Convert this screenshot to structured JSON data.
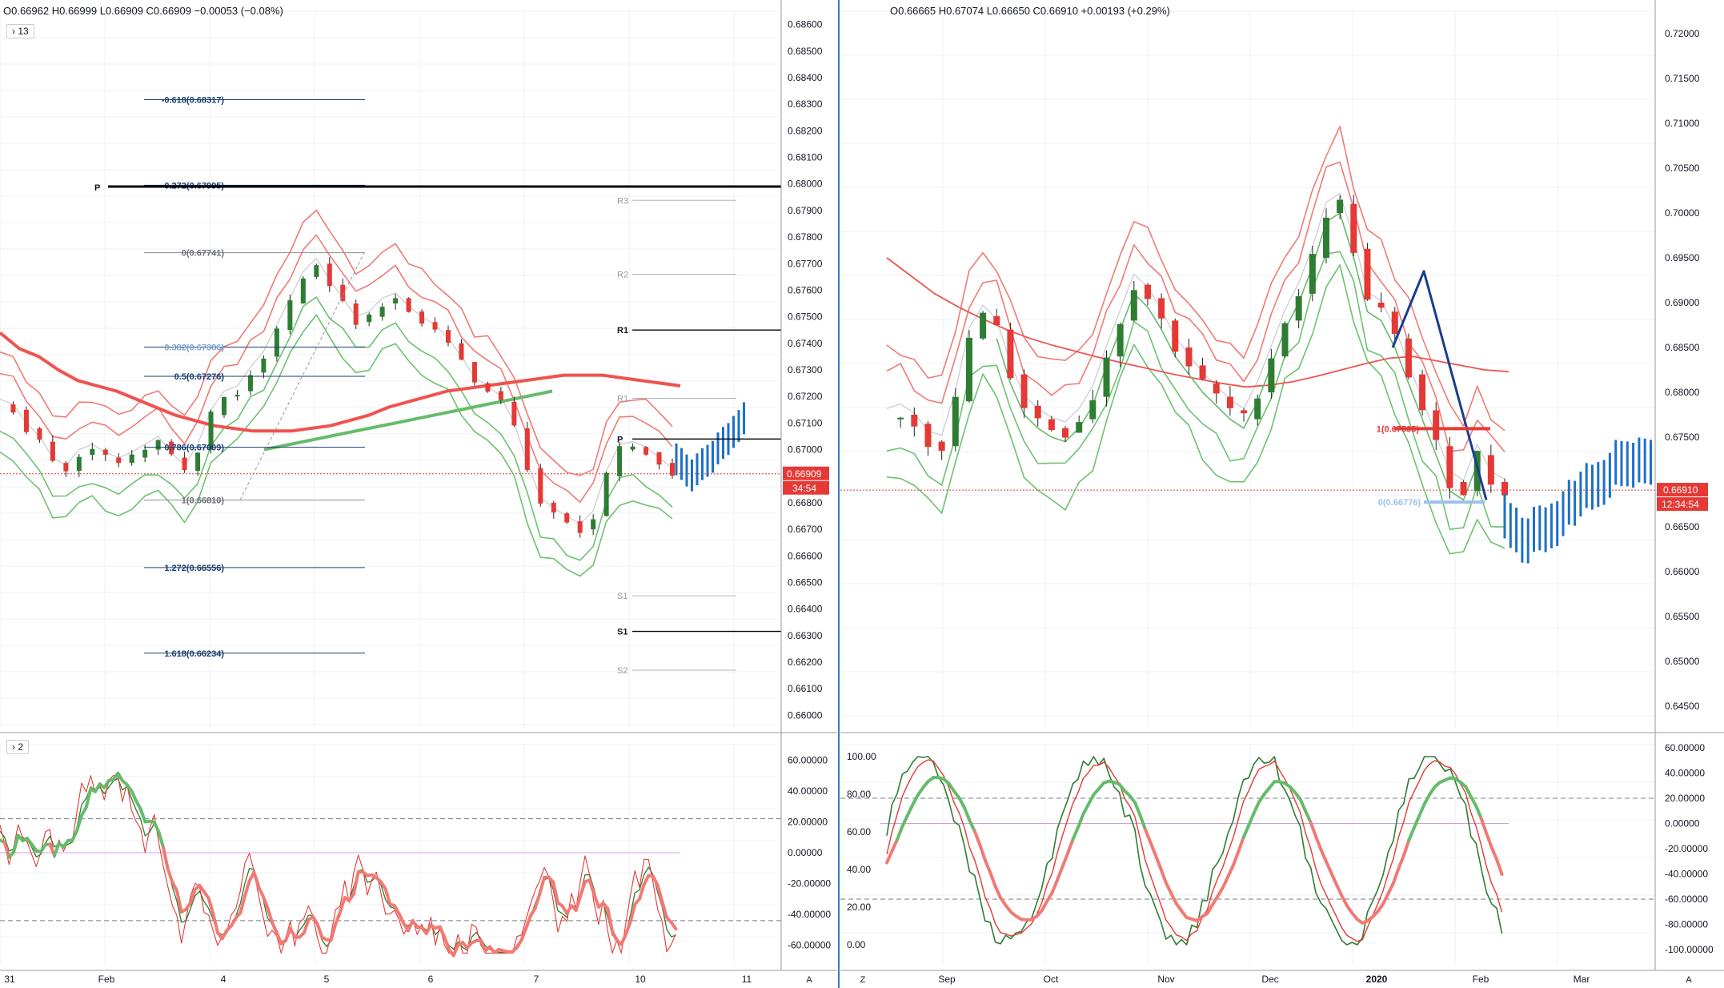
{
  "left": {
    "ohlc": "O0.66962  H0.66999  L0.66909  C0.66909  −0.00053 (−0.08%)",
    "study_badge_main": "› 13",
    "study_badge_osc": "› 2",
    "price_axis": [
      "0.68600",
      "0.68500",
      "0.68400",
      "0.68300",
      "0.68200",
      "0.68100",
      "0.68000",
      "0.67900",
      "0.67800",
      "0.67700",
      "0.67600",
      "0.67500",
      "0.67400",
      "0.67300",
      "0.67200",
      "0.67100",
      "0.67000",
      "0.66909",
      "0.66800",
      "0.66700",
      "0.66600",
      "0.66500",
      "0.66400",
      "0.66300",
      "0.66200",
      "0.66100",
      "0.66000"
    ],
    "last_price_label": "0.66909",
    "countdown_label": "34:54",
    "osc_axis": [
      "60.00000",
      "40.00000",
      "20.00000",
      "0.00000",
      "-20.00000",
      "-40.00000",
      "-60.00000"
    ],
    "time_axis": [
      "31",
      "Feb",
      "4",
      "5",
      "6",
      "7",
      "10",
      "11"
    ],
    "axis_mode_button": "A",
    "fib_labels": [
      "-0.618(0.68317)",
      "-0.272(0.67995)",
      "0(0.67741)",
      "0.382(0.67386)",
      "0.5(0.67276)",
      "0.786(0.67009)",
      "1(0.66810)",
      "1.272(0.66556)",
      "1.618(0.66234)"
    ],
    "pivot_labels": [
      "P",
      "R3",
      "R2",
      "R1",
      "R1",
      "P",
      "S1",
      "S1",
      "S2"
    ]
  },
  "right": {
    "ohlc": "O0.66665  H0.67074  L0.66650  C0.66910  +0.00193 (+0.29%)",
    "price_axis": [
      "0.72000",
      "0.71500",
      "0.71000",
      "0.70500",
      "0.70000",
      "0.69500",
      "0.69000",
      "0.68500",
      "0.68000",
      "0.67500",
      "0.66910",
      "0.66500",
      "0.66000",
      "0.65500",
      "0.65000",
      "0.64500"
    ],
    "last_price_label": "0.66910",
    "countdown_label": "12:34:54",
    "osc_left_axis": [
      "100.00",
      "80.00",
      "60.00",
      "40.00",
      "20.00",
      "0.00"
    ],
    "osc_right_axis": [
      "60.00000",
      "40.00000",
      "20.00000",
      "0.00000",
      "-20.00000",
      "-40.00000",
      "-60.00000",
      "-80.00000",
      "-100.00000"
    ],
    "time_axis": [
      "Sep",
      "Oct",
      "Nov",
      "Dec",
      "2020",
      "Feb",
      "Mar"
    ],
    "zoom_button": "Z",
    "axis_mode_button": "A",
    "fib_labels": [
      "1(0.67595)",
      "0(0.66776)"
    ]
  },
  "colors": {
    "up": "#2e7d32",
    "down": "#e53935",
    "band_red": "#f07a74",
    "band_green": "#6cc26f",
    "ma_red": "#ef5350",
    "ma_green": "#66bb6a",
    "projection": "#1e6fc7",
    "grey": "#c8cad0",
    "fib_blue": "#1a3d6e",
    "price_tag": "#e53935",
    "divider": "#2f7dd1"
  },
  "chart_data": [
    {
      "type": "line",
      "title": "",
      "ohlc_header": "O0.66962 H0.66999 L0.66909 C0.66909 −0.00053 (−0.08%)",
      "x_ticks": [
        "31",
        "Feb",
        "4",
        "5",
        "6",
        "7",
        "10",
        "11"
      ],
      "ylim": [
        0.6595,
        0.6865
      ],
      "series": [
        {
          "values": [
            0.6717,
            0.6715,
            0.6708,
            0.6703,
            0.6695,
            0.6692,
            0.6698,
            0.67,
            0.6697,
            0.6695,
            0.6697,
            0.67,
            0.6703,
            0.6697,
            0.6692,
            0.67,
            0.6713,
            0.672,
            0.6722,
            0.6729,
            0.6735,
            0.6745,
            0.6755,
            0.6765,
            0.677,
            0.6762,
            0.6755,
            0.6748,
            0.675,
            0.6755,
            0.6757,
            0.6752,
            0.6748,
            0.6745,
            0.674,
            0.6733,
            0.6725,
            0.6722,
            0.6718,
            0.6708,
            0.6693,
            0.668,
            0.6676,
            0.6673,
            0.667,
            0.6675,
            0.669,
            0.67,
            0.6701,
            0.6699,
            0.6695,
            0.6691
          ]
        },
        {
          "values": [
            0.6744,
            0.6738,
            0.6735,
            0.673,
            0.6726,
            0.6724,
            0.6722,
            0.6719,
            0.6716,
            0.6713,
            0.6711,
            0.6709,
            0.6708,
            0.6707,
            0.6707,
            0.6707,
            0.6708,
            0.6709,
            0.6711,
            0.6713,
            0.6716,
            0.6718,
            0.672,
            0.6722,
            0.6723,
            0.6724,
            0.6725,
            0.6726,
            0.6727,
            0.6728,
            0.6728,
            0.6728,
            0.6727,
            0.6726,
            0.6725,
            0.6724
          ]
        },
        {
          "values": [
            0.67,
            0.6701,
            0.6702,
            0.6703,
            0.6704,
            0.6705,
            0.6706,
            0.6707,
            0.6708,
            0.6709,
            0.671,
            0.6711,
            0.6712,
            0.6713,
            0.6714,
            0.6715,
            0.6716,
            0.6717,
            0.6718,
            0.6719,
            0.672,
            0.6721,
            0.6722
          ]
        }
      ],
      "fib_levels": [
        0.68317,
        0.67995,
        0.67741,
        0.67386,
        0.67276,
        0.67009,
        0.6681,
        0.66556,
        0.66234
      ],
      "pivot_levels": {
        "P_daily": 0.6799,
        "R3": 0.67938,
        "R2": 0.6766,
        "R1": 0.6745,
        "R1_dotted": 0.67193,
        "P": 0.6704,
        "S1": 0.6645,
        "S1_bold": 0.66316,
        "S2": 0.6617
      },
      "last_price": 0.66909
    },
    {
      "type": "line",
      "title": "",
      "ohlc_header": "O0.66665 H0.67074 L0.66650 C0.66910 +0.00193 (+0.29%)",
      "x_ticks": [
        "Sep",
        "Oct",
        "Nov",
        "Dec",
        "2020",
        "Feb",
        "Mar"
      ],
      "ylim": [
        0.6425,
        0.7225
      ],
      "series": [
        {
          "values": [
            0.677,
            0.6775,
            0.6765,
            0.6745,
            0.674,
            0.679,
            0.686,
            0.6885,
            0.687,
            0.682,
            0.6785,
            0.677,
            0.676,
            0.6755,
            0.677,
            0.6795,
            0.684,
            0.688,
            0.692,
            0.6905,
            0.688,
            0.685,
            0.683,
            0.681,
            0.6795,
            0.678,
            0.677,
            0.68,
            0.684,
            0.688,
            0.691,
            0.695,
            0.7,
            0.701,
            0.696,
            0.69,
            0.689,
            0.686,
            0.682,
            0.678,
            0.674,
            0.67,
            0.669,
            0.673,
            0.67,
            0.6691
          ]
        },
        {
          "values": [
            0.695,
            0.693,
            0.691,
            0.6895,
            0.6882,
            0.687,
            0.686,
            0.6852,
            0.6845,
            0.6838,
            0.6832,
            0.6826,
            0.682,
            0.6815,
            0.681,
            0.6806,
            0.6808,
            0.6812,
            0.6818,
            0.6825,
            0.6832,
            0.6838,
            0.684,
            0.6835,
            0.683,
            0.6825,
            0.6823
          ]
        }
      ],
      "fib_levels": [
        0.67595,
        0.66776
      ],
      "last_price": 0.6691
    }
  ]
}
